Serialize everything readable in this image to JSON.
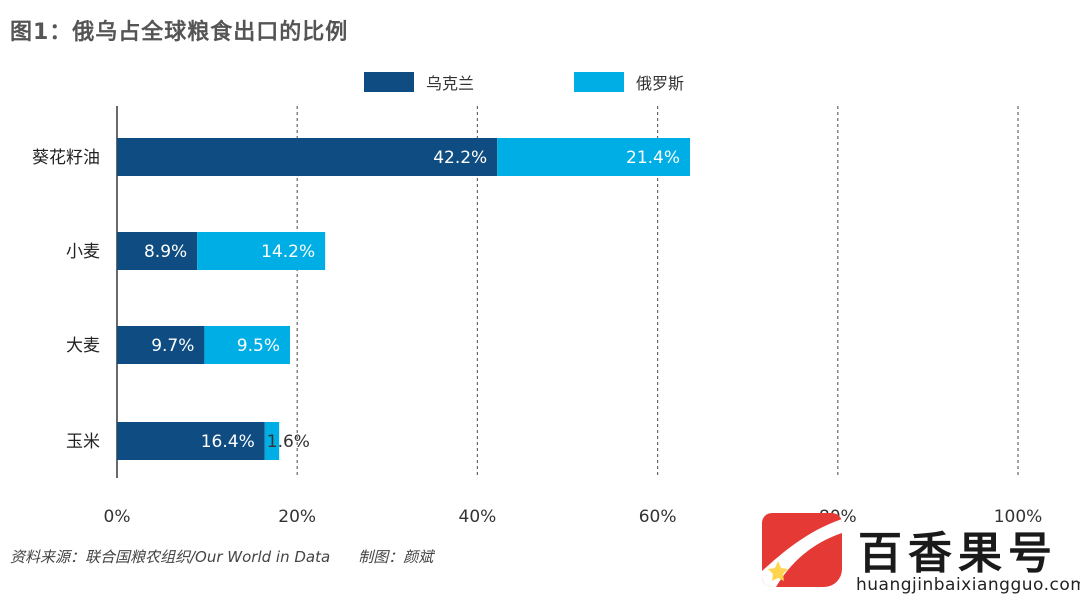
{
  "title": "图1：俄乌占全球粮食出口的比例",
  "source": "资料来源：联合国粮农组织/Our World in Data",
  "credit": "制图：颜斌",
  "colors": {
    "ukraine": "#0f4c81",
    "russia": "#00aee6"
  },
  "watermark": {
    "name": "百香果号",
    "url": "huangjinbaixiangguo.com"
  },
  "chart_data": {
    "type": "bar",
    "orientation": "horizontal",
    "stacked": true,
    "categories": [
      "葵花籽油",
      "小麦",
      "大麦",
      "玉米"
    ],
    "series": [
      {
        "name": "乌克兰",
        "values": [
          42.2,
          8.9,
          9.7,
          16.4
        ],
        "labels": [
          "42.2%",
          "8.9%",
          "9.7%",
          "16.4%"
        ]
      },
      {
        "name": "俄罗斯",
        "values": [
          21.4,
          14.2,
          9.5,
          1.6
        ],
        "labels": [
          "21.4%",
          "14.2%",
          "9.5%",
          "1.6%"
        ]
      }
    ],
    "xlim": [
      0,
      100
    ],
    "xticks": [
      0,
      20,
      40,
      60,
      80,
      100
    ],
    "xtick_labels": [
      "0%",
      "20%",
      "40%",
      "60%",
      "80%",
      "100%"
    ],
    "grid": "vertical-dashed",
    "legend_position": "top-center"
  }
}
